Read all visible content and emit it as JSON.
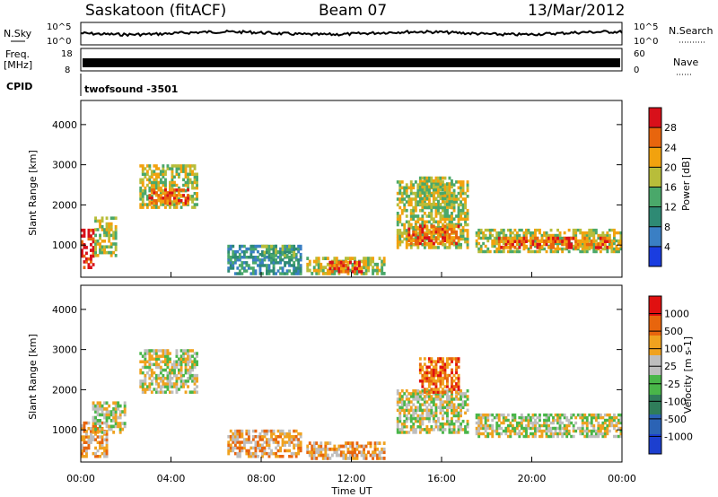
{
  "header": {
    "station": "Saskatoon (fitACF)",
    "beam": "Beam 07",
    "date": "13/Mar/2012"
  },
  "top_panels": {
    "nsky_label": "N.Sky",
    "nsky_ticks": [
      "10^5",
      "10^0"
    ],
    "nsearch_label": "N.Search",
    "nsearch_ticks": [
      "10^5",
      "10^0"
    ],
    "freq_label": "Freq.",
    "freq_unit": "[MHz]",
    "freq_ticks": [
      "18",
      "8"
    ],
    "nave_label": "Nave",
    "nave_ticks": [
      "60",
      "0"
    ],
    "cpid_label": "CPID",
    "cpid_value": "twofsound -3501"
  },
  "chart_data": [
    {
      "type": "heatmap",
      "name": "power",
      "ylabel": "Slant Range [km]",
      "yticks": [
        "1000",
        "2000",
        "3000",
        "4000"
      ],
      "ylim": [
        200,
        4600
      ],
      "colorbar_label": "Power [dB]",
      "colorbar_ticks": [
        "4",
        "8",
        "12",
        "16",
        "20",
        "24",
        "28"
      ],
      "colorbar_colors": [
        "#1a3de0",
        "#3a7fc4",
        "#2e8a74",
        "#4aa86a",
        "#b8bd3a",
        "#f2a20e",
        "#e8650d",
        "#d8101a"
      ],
      "regions": [
        {
          "t": [
            0.0,
            0.6
          ],
          "r": [
            400,
            1400
          ],
          "level": 7
        },
        {
          "t": [
            0.6,
            1.6
          ],
          "r": [
            700,
            1700
          ],
          "level": 4
        },
        {
          "t": [
            2.6,
            5.2
          ],
          "r": [
            1900,
            3000
          ],
          "level": 4
        },
        {
          "t": [
            3.0,
            4.8
          ],
          "r": [
            2000,
            2400
          ],
          "level": 6
        },
        {
          "t": [
            6.5,
            9.8
          ],
          "r": [
            250,
            1000
          ],
          "level": 2
        },
        {
          "t": [
            8.0,
            9.5
          ],
          "r": [
            700,
            1000
          ],
          "level": 3
        },
        {
          "t": [
            10.0,
            13.5
          ],
          "r": [
            250,
            700
          ],
          "level": 4
        },
        {
          "t": [
            11.0,
            12.5
          ],
          "r": [
            300,
            600
          ],
          "level": 6
        },
        {
          "t": [
            14.0,
            17.2
          ],
          "r": [
            900,
            2600
          ],
          "level": 4
        },
        {
          "t": [
            14.5,
            16.8
          ],
          "r": [
            1000,
            1500
          ],
          "level": 6
        },
        {
          "t": [
            15.0,
            16.5
          ],
          "r": [
            1900,
            2700
          ],
          "level": 4
        },
        {
          "t": [
            17.5,
            24.0
          ],
          "r": [
            800,
            1400
          ],
          "level": 4
        },
        {
          "t": [
            18.5,
            23.5
          ],
          "r": [
            900,
            1200
          ],
          "level": 6
        }
      ]
    },
    {
      "type": "heatmap",
      "name": "velocity",
      "ylabel": "Slant Range [km]",
      "yticks": [
        "1000",
        "2000",
        "3000",
        "4000"
      ],
      "ylim": [
        200,
        4600
      ],
      "xlabel": "Time UT",
      "xticks": [
        "00:00",
        "04:00",
        "08:00",
        "12:00",
        "16:00",
        "20:00",
        "00:00"
      ],
      "colorbar_label": "Velocity [m s-1]",
      "colorbar_ticks": [
        "1000",
        "500",
        "100",
        "25",
        "-25",
        "-100",
        "-500",
        "-1000"
      ],
      "colorbar_colors": [
        "#1c3fcf",
        "#2b63b5",
        "#2f7d5a",
        "#49b649",
        "#bebebe",
        "#f0a21f",
        "#e8650d",
        "#e01010"
      ],
      "regions": [
        {
          "t": [
            0.0,
            1.2
          ],
          "r": [
            300,
            1200
          ],
          "level": 5
        },
        {
          "t": [
            0.5,
            2.0
          ],
          "r": [
            900,
            1700
          ],
          "level": 4
        },
        {
          "t": [
            2.6,
            5.2
          ],
          "r": [
            1900,
            3000
          ],
          "level": 4
        },
        {
          "t": [
            6.5,
            9.8
          ],
          "r": [
            300,
            1000
          ],
          "level": 5
        },
        {
          "t": [
            10.0,
            13.5
          ],
          "r": [
            250,
            700
          ],
          "level": 5
        },
        {
          "t": [
            14.0,
            17.2
          ],
          "r": [
            900,
            2000
          ],
          "level": 4
        },
        {
          "t": [
            15.0,
            16.8
          ],
          "r": [
            1900,
            2800
          ],
          "level": 6
        },
        {
          "t": [
            17.5,
            24.0
          ],
          "r": [
            800,
            1400
          ],
          "level": 4
        }
      ]
    }
  ]
}
